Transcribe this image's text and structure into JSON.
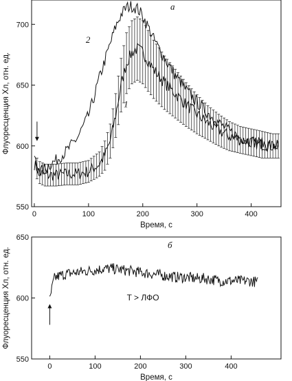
{
  "chart_data": [
    {
      "panel": "a",
      "type": "line",
      "panel_letter": "a",
      "xlabel": "Время, с",
      "ylabel": "Флуоресценция Хл, отн. ед.",
      "xlim": [
        -5,
        455
      ],
      "ylim": [
        550,
        720
      ],
      "xticks": [
        0,
        100,
        200,
        300,
        400
      ],
      "yticks": [
        550,
        600,
        650,
        700
      ],
      "grid": false,
      "arrow_at_time": 5,
      "series": [
        {
          "name": "1",
          "error_bars": true,
          "x": [
            0,
            10,
            20,
            40,
            60,
            80,
            100,
            120,
            130,
            140,
            150,
            160,
            170,
            180,
            190,
            200,
            210,
            220,
            240,
            260,
            280,
            300,
            320,
            340,
            360,
            380,
            400,
            420,
            440,
            450
          ],
          "y": [
            585,
            578,
            576,
            576,
            577,
            577,
            579,
            585,
            592,
            604,
            625,
            650,
            668,
            677,
            680,
            677,
            670,
            663,
            652,
            643,
            634,
            626,
            619,
            613,
            608,
            605,
            603,
            601,
            600,
            600
          ],
          "error": [
            8,
            9,
            9,
            9,
            9,
            9,
            9,
            10,
            12,
            14,
            18,
            22,
            25,
            26,
            26,
            26,
            25,
            24,
            22,
            20,
            18,
            16,
            14,
            13,
            12,
            11,
            11,
            11,
            10,
            10
          ]
        },
        {
          "name": "2",
          "error_bars": false,
          "x": [
            0,
            10,
            20,
            40,
            60,
            80,
            100,
            110,
            120,
            130,
            140,
            150,
            160,
            170,
            180,
            190,
            200,
            210,
            220,
            240,
            260,
            280,
            300,
            320,
            340,
            360,
            380,
            400,
            420,
            440,
            450
          ],
          "y": [
            590,
            578,
            582,
            588,
            596,
            607,
            625,
            640,
            656,
            670,
            684,
            698,
            708,
            714,
            715,
            713,
            707,
            698,
            688,
            672,
            658,
            646,
            636,
            627,
            619,
            612,
            607,
            604,
            602,
            600,
            600
          ]
        }
      ]
    },
    {
      "panel": "b",
      "type": "line",
      "panel_letter": "б",
      "xlabel": "Время, с",
      "ylabel": "Флуоресценция Хл, отн. ед.",
      "xlim": [
        -40,
        510
      ],
      "ylim": [
        550,
        650
      ],
      "xticks": [
        0,
        100,
        200,
        300,
        400
      ],
      "yticks": [
        550,
        600,
        650
      ],
      "grid": false,
      "arrow_at_time": 0,
      "annotation": "T > ЛФО",
      "series": [
        {
          "name": "",
          "x": [
            0,
            5,
            10,
            20,
            40,
            60,
            80,
            100,
            120,
            140,
            160,
            180,
            200,
            220,
            240,
            260,
            280,
            300,
            320,
            340,
            360,
            380,
            400,
            420,
            440,
            460
          ],
          "y": [
            598,
            608,
            616,
            618,
            620,
            621,
            622,
            623,
            624,
            624,
            623,
            622,
            621,
            620,
            619,
            618,
            617,
            617,
            616,
            616,
            615,
            614,
            614,
            614,
            614,
            613
          ]
        }
      ]
    }
  ]
}
